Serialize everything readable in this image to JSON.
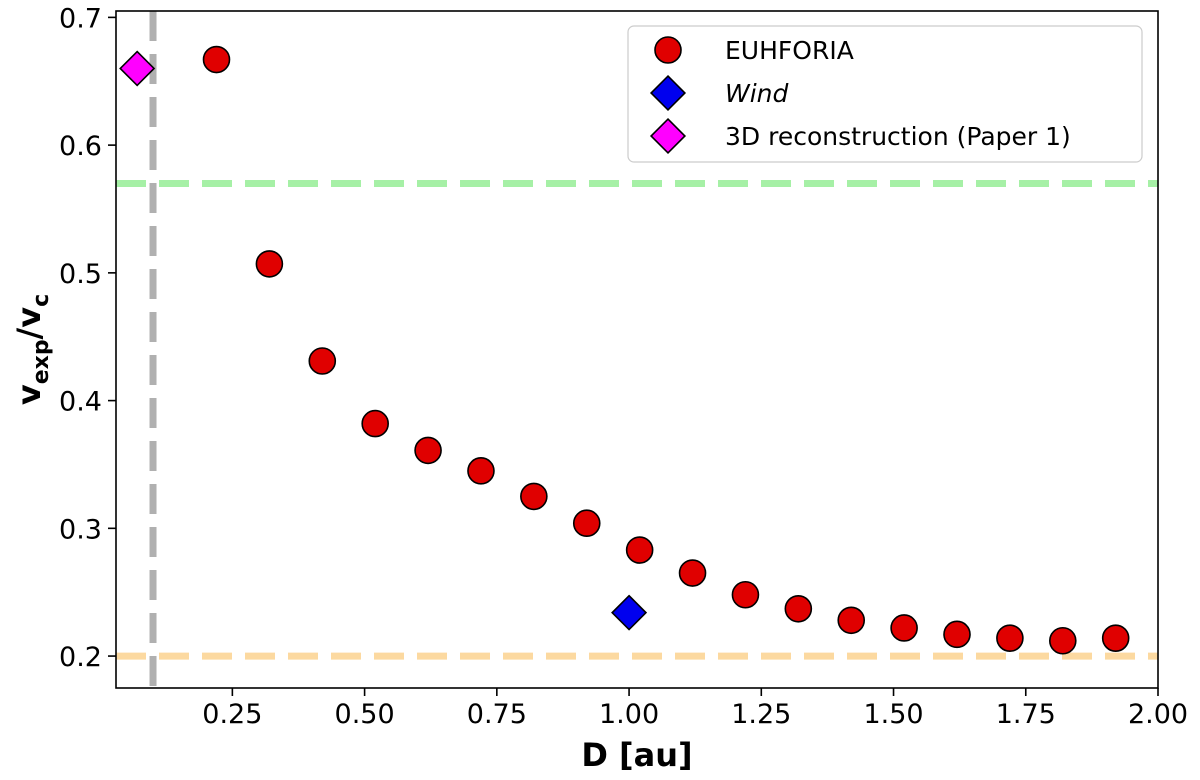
{
  "chart_data": {
    "type": "scatter",
    "xlabel": "D [au]",
    "ylabel": {
      "base1": "v",
      "sub1": "exp",
      "sep": "/",
      "base2": "v",
      "sub2": "c"
    },
    "xlim": [
      0.03,
      2.0
    ],
    "ylim": [
      0.175,
      0.705
    ],
    "xticks": [
      {
        "value": 0.25,
        "label": "0.25"
      },
      {
        "value": 0.5,
        "label": "0.50"
      },
      {
        "value": 0.75,
        "label": "0.75"
      },
      {
        "value": 1.0,
        "label": "1.00"
      },
      {
        "value": 1.25,
        "label": "1.25"
      },
      {
        "value": 1.5,
        "label": "1.50"
      },
      {
        "value": 1.75,
        "label": "1.75"
      },
      {
        "value": 2.0,
        "label": "2.00"
      }
    ],
    "yticks": [
      {
        "value": 0.2,
        "label": "0.2"
      },
      {
        "value": 0.3,
        "label": "0.3"
      },
      {
        "value": 0.4,
        "label": "0.4"
      },
      {
        "value": 0.5,
        "label": "0.5"
      },
      {
        "value": 0.6,
        "label": "0.6"
      },
      {
        "value": 0.7,
        "label": "0.7"
      }
    ],
    "series": [
      {
        "name": "EUHFORIA",
        "marker": "circle",
        "color": "#e00000",
        "x": [
          0.22,
          0.32,
          0.42,
          0.52,
          0.62,
          0.72,
          0.82,
          0.92,
          1.02,
          1.12,
          1.22,
          1.32,
          1.42,
          1.52,
          1.62,
          1.72,
          1.82,
          1.92
        ],
        "y": [
          0.667,
          0.507,
          0.431,
          0.382,
          0.361,
          0.345,
          0.325,
          0.304,
          0.283,
          0.265,
          0.248,
          0.237,
          0.228,
          0.222,
          0.217,
          0.214,
          0.212,
          0.214
        ]
      },
      {
        "name": "Wind",
        "italic": true,
        "marker": "diamond",
        "color": "#0000ee",
        "x": [
          1.0
        ],
        "y": [
          0.234
        ]
      },
      {
        "name": "3D reconstruction (Paper 1)",
        "marker": "diamond",
        "color": "#ff00ff",
        "x": [
          0.07
        ],
        "y": [
          0.66
        ]
      }
    ],
    "reference_lines": [
      {
        "orientation": "horizontal",
        "value": 0.57,
        "color": "#a6f0a6",
        "style": "dashed"
      },
      {
        "orientation": "horizontal",
        "value": 0.2,
        "color": "#fcd9a0",
        "style": "dashed"
      },
      {
        "orientation": "vertical",
        "value": 0.1,
        "color": "#b0b0b0",
        "style": "dashed"
      }
    ],
    "legend_position": "top-right"
  }
}
